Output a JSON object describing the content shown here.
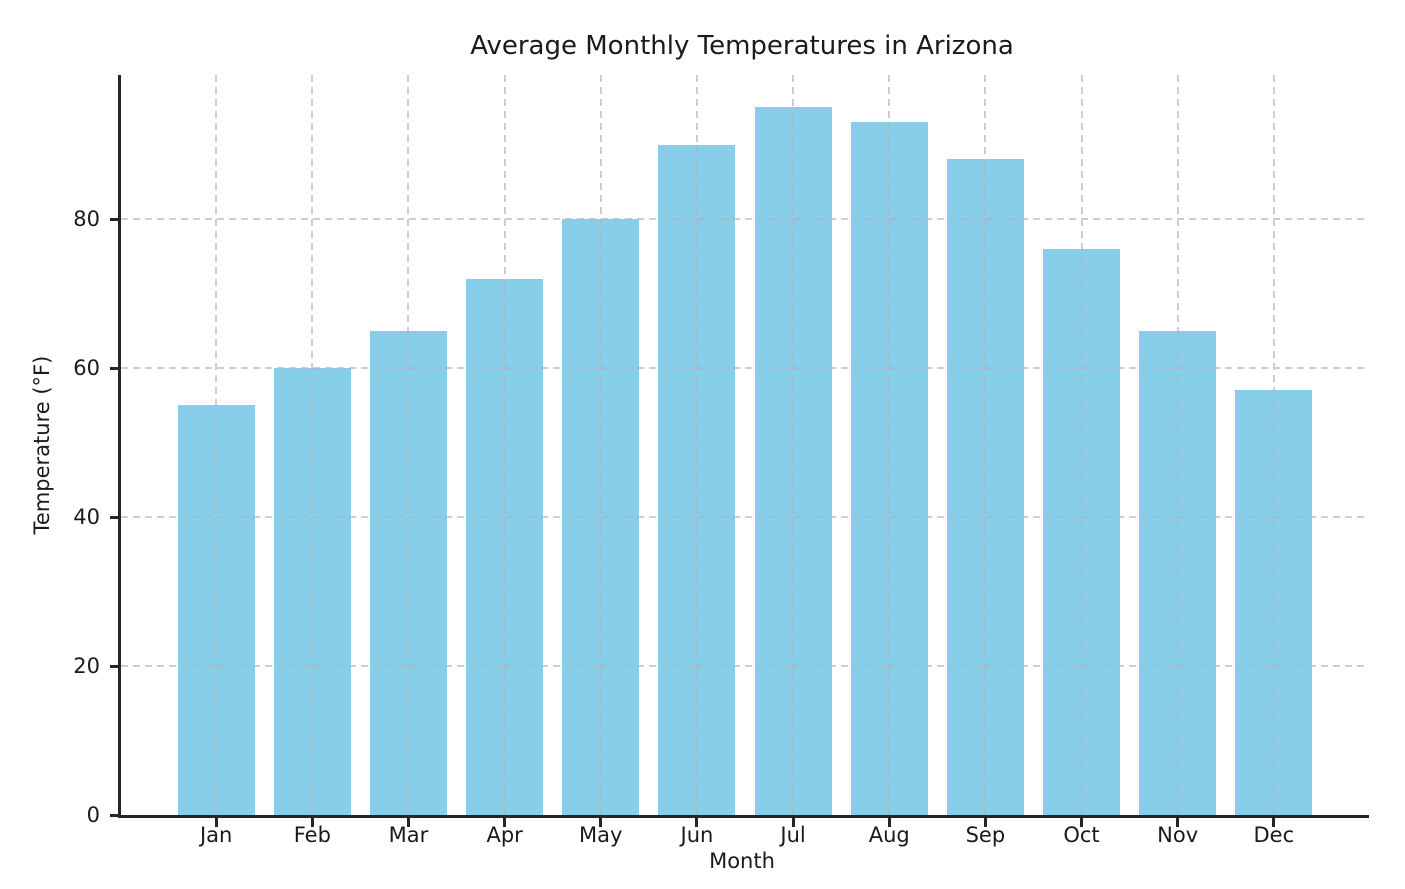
{
  "chart_data": {
    "type": "bar",
    "title": "Average Monthly Temperatures in Arizona",
    "xlabel": "Month",
    "ylabel": "Temperature (°F)",
    "categories": [
      "Jan",
      "Feb",
      "Mar",
      "Apr",
      "May",
      "Jun",
      "Jul",
      "Aug",
      "Sep",
      "Oct",
      "Nov",
      "Dec"
    ],
    "values": [
      55,
      60,
      65,
      72,
      80,
      90,
      95,
      93,
      88,
      76,
      65,
      57
    ],
    "yticks": [
      0,
      20,
      40,
      60,
      80
    ],
    "ylim": [
      0,
      99.33
    ],
    "bar_width_fraction": 0.8,
    "x_edge_padding": 0.99,
    "grid": true,
    "grid_style": "dashed",
    "grid_above_bars": true,
    "legend_position": "none",
    "colors": {
      "bar": "#87CEEB",
      "spine": "#262626",
      "grid": "#b3b3b3",
      "text": "#1a1a1a",
      "background": "#ffffff"
    }
  }
}
